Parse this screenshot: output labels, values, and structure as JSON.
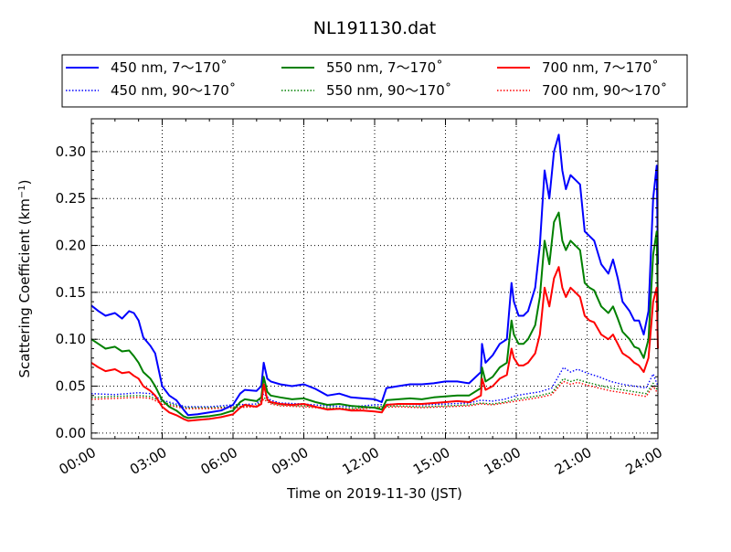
{
  "chart_data": {
    "type": "line",
    "title": "NL191130.dat",
    "xlabel": "Time on 2019-11-30 (JST)",
    "ylabel_prefix": "Scattering Coefficient (km",
    "ylabel_exp": "−1",
    "ylabel_suffix": ")",
    "x_unit": "hours",
    "xlim": [
      0,
      24
    ],
    "ylim": [
      -0.006,
      0.335
    ],
    "grid": true,
    "grid_style": "dotted",
    "legend_position": "top, above plot",
    "x_ticks": [
      {
        "value": 0,
        "label": "00:00"
      },
      {
        "value": 3,
        "label": "03:00"
      },
      {
        "value": 6,
        "label": "06:00"
      },
      {
        "value": 9,
        "label": "09:00"
      },
      {
        "value": 12,
        "label": "12:00"
      },
      {
        "value": 15,
        "label": "15:00"
      },
      {
        "value": 18,
        "label": "18:00"
      },
      {
        "value": 21,
        "label": "21:00"
      },
      {
        "value": 24,
        "label": "24:00"
      }
    ],
    "y_ticks": [
      {
        "value": 0.0,
        "label": "0.00"
      },
      {
        "value": 0.05,
        "label": "0.05"
      },
      {
        "value": 0.1,
        "label": "0.10"
      },
      {
        "value": 0.15,
        "label": "0.15"
      },
      {
        "value": 0.2,
        "label": "0.20"
      },
      {
        "value": 0.25,
        "label": "0.25"
      },
      {
        "value": 0.3,
        "label": "0.30"
      }
    ],
    "series": [
      {
        "name": "450 nm, 7～170˚",
        "color": "#0000ff",
        "style": "solid",
        "x": [
          0,
          0.3,
          0.6,
          1.0,
          1.3,
          1.6,
          1.8,
          2.0,
          2.2,
          2.5,
          2.7,
          3.0,
          3.3,
          3.6,
          3.9,
          4.1,
          4.5,
          5.0,
          5.5,
          6.0,
          6.3,
          6.5,
          7.0,
          7.2,
          7.3,
          7.45,
          7.6,
          8.0,
          8.5,
          9.0,
          9.5,
          10.0,
          10.5,
          11.0,
          11.5,
          12.0,
          12.3,
          12.5,
          13.0,
          13.5,
          14.0,
          14.5,
          15.0,
          15.5,
          16.0,
          16.5,
          16.55,
          16.7,
          17.0,
          17.3,
          17.6,
          17.8,
          17.9,
          18.1,
          18.3,
          18.5,
          18.8,
          19.0,
          19.2,
          19.4,
          19.6,
          19.8,
          19.95,
          20.1,
          20.3,
          20.5,
          20.7,
          20.9,
          21.1,
          21.3,
          21.6,
          21.9,
          22.1,
          22.3,
          22.5,
          22.8,
          23.0,
          23.2,
          23.4,
          23.6,
          23.8,
          23.95,
          24.0
        ],
        "y": [
          0.136,
          0.13,
          0.125,
          0.128,
          0.122,
          0.13,
          0.128,
          0.12,
          0.102,
          0.093,
          0.085,
          0.05,
          0.04,
          0.035,
          0.025,
          0.019,
          0.02,
          0.022,
          0.024,
          0.03,
          0.042,
          0.046,
          0.045,
          0.05,
          0.075,
          0.058,
          0.055,
          0.052,
          0.05,
          0.052,
          0.047,
          0.04,
          0.042,
          0.038,
          0.037,
          0.036,
          0.033,
          0.048,
          0.05,
          0.052,
          0.052,
          0.053,
          0.055,
          0.055,
          0.053,
          0.065,
          0.095,
          0.075,
          0.083,
          0.095,
          0.1,
          0.16,
          0.14,
          0.125,
          0.125,
          0.13,
          0.155,
          0.2,
          0.28,
          0.25,
          0.3,
          0.318,
          0.28,
          0.26,
          0.275,
          0.27,
          0.265,
          0.215,
          0.21,
          0.205,
          0.18,
          0.17,
          0.185,
          0.165,
          0.14,
          0.13,
          0.12,
          0.12,
          0.105,
          0.13,
          0.25,
          0.285,
          0.18
        ]
      },
      {
        "name": "450 nm, 90～170˚",
        "color": "#0000ff",
        "style": "dotted",
        "x": [
          0,
          1.0,
          2.0,
          2.5,
          3.0,
          4.0,
          5.0,
          6.0,
          7.0,
          7.3,
          7.6,
          8.0,
          9.0,
          10.0,
          11.0,
          12.0,
          13.0,
          14.0,
          15.0,
          16.0,
          16.5,
          17.0,
          17.5,
          18.0,
          18.5,
          19.0,
          19.5,
          20.0,
          20.3,
          20.6,
          21.0,
          21.5,
          22.0,
          22.5,
          23.0,
          23.5,
          23.8,
          24.0
        ],
        "y": [
          0.042,
          0.041,
          0.043,
          0.042,
          0.035,
          0.028,
          0.028,
          0.03,
          0.031,
          0.042,
          0.035,
          0.032,
          0.031,
          0.029,
          0.028,
          0.03,
          0.031,
          0.03,
          0.031,
          0.032,
          0.035,
          0.034,
          0.036,
          0.04,
          0.042,
          0.044,
          0.048,
          0.07,
          0.065,
          0.068,
          0.064,
          0.06,
          0.055,
          0.052,
          0.05,
          0.048,
          0.063,
          0.05
        ]
      },
      {
        "name": "550 nm, 7～170˚",
        "color": "#008000",
        "style": "solid",
        "x": [
          0,
          0.3,
          0.6,
          1.0,
          1.3,
          1.6,
          1.8,
          2.0,
          2.2,
          2.5,
          2.7,
          3.0,
          3.3,
          3.6,
          3.9,
          4.1,
          4.5,
          5.0,
          5.5,
          6.0,
          6.3,
          6.5,
          7.0,
          7.2,
          7.3,
          7.45,
          7.6,
          8.0,
          8.5,
          9.0,
          9.5,
          10.0,
          10.5,
          11.0,
          11.5,
          12.0,
          12.3,
          12.5,
          13.0,
          13.5,
          14.0,
          14.5,
          15.0,
          15.5,
          16.0,
          16.5,
          16.55,
          16.7,
          17.0,
          17.3,
          17.6,
          17.8,
          17.9,
          18.1,
          18.3,
          18.5,
          18.8,
          19.0,
          19.2,
          19.4,
          19.6,
          19.8,
          19.95,
          20.1,
          20.3,
          20.5,
          20.7,
          20.9,
          21.1,
          21.3,
          21.6,
          21.9,
          22.1,
          22.3,
          22.5,
          22.8,
          23.0,
          23.2,
          23.4,
          23.6,
          23.8,
          23.95,
          24.0
        ],
        "y": [
          0.1,
          0.095,
          0.09,
          0.092,
          0.087,
          0.088,
          0.082,
          0.075,
          0.065,
          0.058,
          0.05,
          0.035,
          0.028,
          0.024,
          0.018,
          0.016,
          0.017,
          0.018,
          0.02,
          0.024,
          0.033,
          0.036,
          0.034,
          0.038,
          0.06,
          0.044,
          0.04,
          0.038,
          0.036,
          0.037,
          0.033,
          0.03,
          0.031,
          0.029,
          0.028,
          0.027,
          0.025,
          0.035,
          0.036,
          0.037,
          0.036,
          0.038,
          0.039,
          0.04,
          0.04,
          0.048,
          0.07,
          0.055,
          0.06,
          0.07,
          0.075,
          0.12,
          0.105,
          0.095,
          0.095,
          0.1,
          0.115,
          0.145,
          0.205,
          0.18,
          0.225,
          0.235,
          0.205,
          0.195,
          0.205,
          0.2,
          0.195,
          0.16,
          0.155,
          0.152,
          0.135,
          0.128,
          0.135,
          0.122,
          0.108,
          0.1,
          0.092,
          0.09,
          0.08,
          0.1,
          0.19,
          0.215,
          0.13
        ]
      },
      {
        "name": "550 nm, 90～170˚",
        "color": "#008000",
        "style": "dotted",
        "x": [
          0,
          1.0,
          2.0,
          2.5,
          3.0,
          4.0,
          5.0,
          6.0,
          7.0,
          7.3,
          7.6,
          8.0,
          9.0,
          10.0,
          11.0,
          12.0,
          13.0,
          14.0,
          15.0,
          16.0,
          16.5,
          17.0,
          17.5,
          18.0,
          18.5,
          19.0,
          19.5,
          20.0,
          20.3,
          20.6,
          21.0,
          21.5,
          22.0,
          22.5,
          23.0,
          23.5,
          23.8,
          24.0
        ],
        "y": [
          0.038,
          0.039,
          0.04,
          0.039,
          0.033,
          0.027,
          0.027,
          0.028,
          0.029,
          0.038,
          0.032,
          0.03,
          0.029,
          0.027,
          0.026,
          0.028,
          0.029,
          0.028,
          0.029,
          0.03,
          0.032,
          0.031,
          0.033,
          0.036,
          0.038,
          0.04,
          0.043,
          0.058,
          0.055,
          0.057,
          0.054,
          0.051,
          0.048,
          0.046,
          0.044,
          0.042,
          0.053,
          0.045
        ]
      },
      {
        "name": "700 nm, 7～170˚",
        "color": "#ff0000",
        "style": "solid",
        "x": [
          0,
          0.3,
          0.6,
          1.0,
          1.3,
          1.6,
          1.8,
          2.0,
          2.2,
          2.5,
          2.7,
          3.0,
          3.3,
          3.6,
          3.9,
          4.1,
          4.5,
          5.0,
          5.5,
          6.0,
          6.3,
          6.5,
          7.0,
          7.2,
          7.3,
          7.45,
          7.6,
          8.0,
          8.5,
          9.0,
          9.5,
          10.0,
          10.5,
          11.0,
          11.5,
          12.0,
          12.3,
          12.5,
          13.0,
          13.5,
          14.0,
          14.5,
          15.0,
          15.5,
          16.0,
          16.5,
          16.55,
          16.7,
          17.0,
          17.3,
          17.6,
          17.8,
          17.9,
          18.1,
          18.3,
          18.5,
          18.8,
          19.0,
          19.2,
          19.4,
          19.6,
          19.8,
          19.95,
          20.1,
          20.3,
          20.5,
          20.7,
          20.9,
          21.1,
          21.3,
          21.6,
          21.9,
          22.1,
          22.3,
          22.5,
          22.8,
          23.0,
          23.2,
          23.4,
          23.6,
          23.8,
          23.95,
          24.0
        ],
        "y": [
          0.075,
          0.07,
          0.066,
          0.068,
          0.064,
          0.065,
          0.061,
          0.058,
          0.05,
          0.045,
          0.04,
          0.028,
          0.022,
          0.019,
          0.015,
          0.013,
          0.014,
          0.015,
          0.017,
          0.02,
          0.027,
          0.03,
          0.028,
          0.031,
          0.052,
          0.036,
          0.033,
          0.031,
          0.03,
          0.031,
          0.028,
          0.025,
          0.026,
          0.024,
          0.024,
          0.023,
          0.022,
          0.03,
          0.031,
          0.031,
          0.031,
          0.032,
          0.033,
          0.034,
          0.033,
          0.04,
          0.058,
          0.046,
          0.05,
          0.058,
          0.062,
          0.09,
          0.08,
          0.072,
          0.072,
          0.075,
          0.085,
          0.105,
          0.155,
          0.135,
          0.165,
          0.177,
          0.155,
          0.145,
          0.155,
          0.15,
          0.145,
          0.125,
          0.12,
          0.118,
          0.105,
          0.1,
          0.105,
          0.095,
          0.085,
          0.08,
          0.075,
          0.072,
          0.065,
          0.08,
          0.14,
          0.155,
          0.09
        ]
      },
      {
        "name": "700 nm, 90～170˚",
        "color": "#ff0000",
        "style": "dotted",
        "x": [
          0,
          1.0,
          2.0,
          2.5,
          3.0,
          4.0,
          5.0,
          6.0,
          7.0,
          7.3,
          7.6,
          8.0,
          9.0,
          10.0,
          11.0,
          12.0,
          13.0,
          14.0,
          15.0,
          16.0,
          16.5,
          17.0,
          17.5,
          18.0,
          18.5,
          19.0,
          19.5,
          20.0,
          20.3,
          20.6,
          21.0,
          21.5,
          22.0,
          22.5,
          23.0,
          23.5,
          23.8,
          24.0
        ],
        "y": [
          0.036,
          0.037,
          0.038,
          0.037,
          0.031,
          0.026,
          0.026,
          0.027,
          0.028,
          0.036,
          0.031,
          0.029,
          0.028,
          0.026,
          0.025,
          0.027,
          0.028,
          0.027,
          0.028,
          0.029,
          0.031,
          0.03,
          0.032,
          0.034,
          0.036,
          0.038,
          0.041,
          0.055,
          0.052,
          0.054,
          0.051,
          0.048,
          0.045,
          0.043,
          0.041,
          0.039,
          0.05,
          0.042
        ]
      }
    ]
  }
}
